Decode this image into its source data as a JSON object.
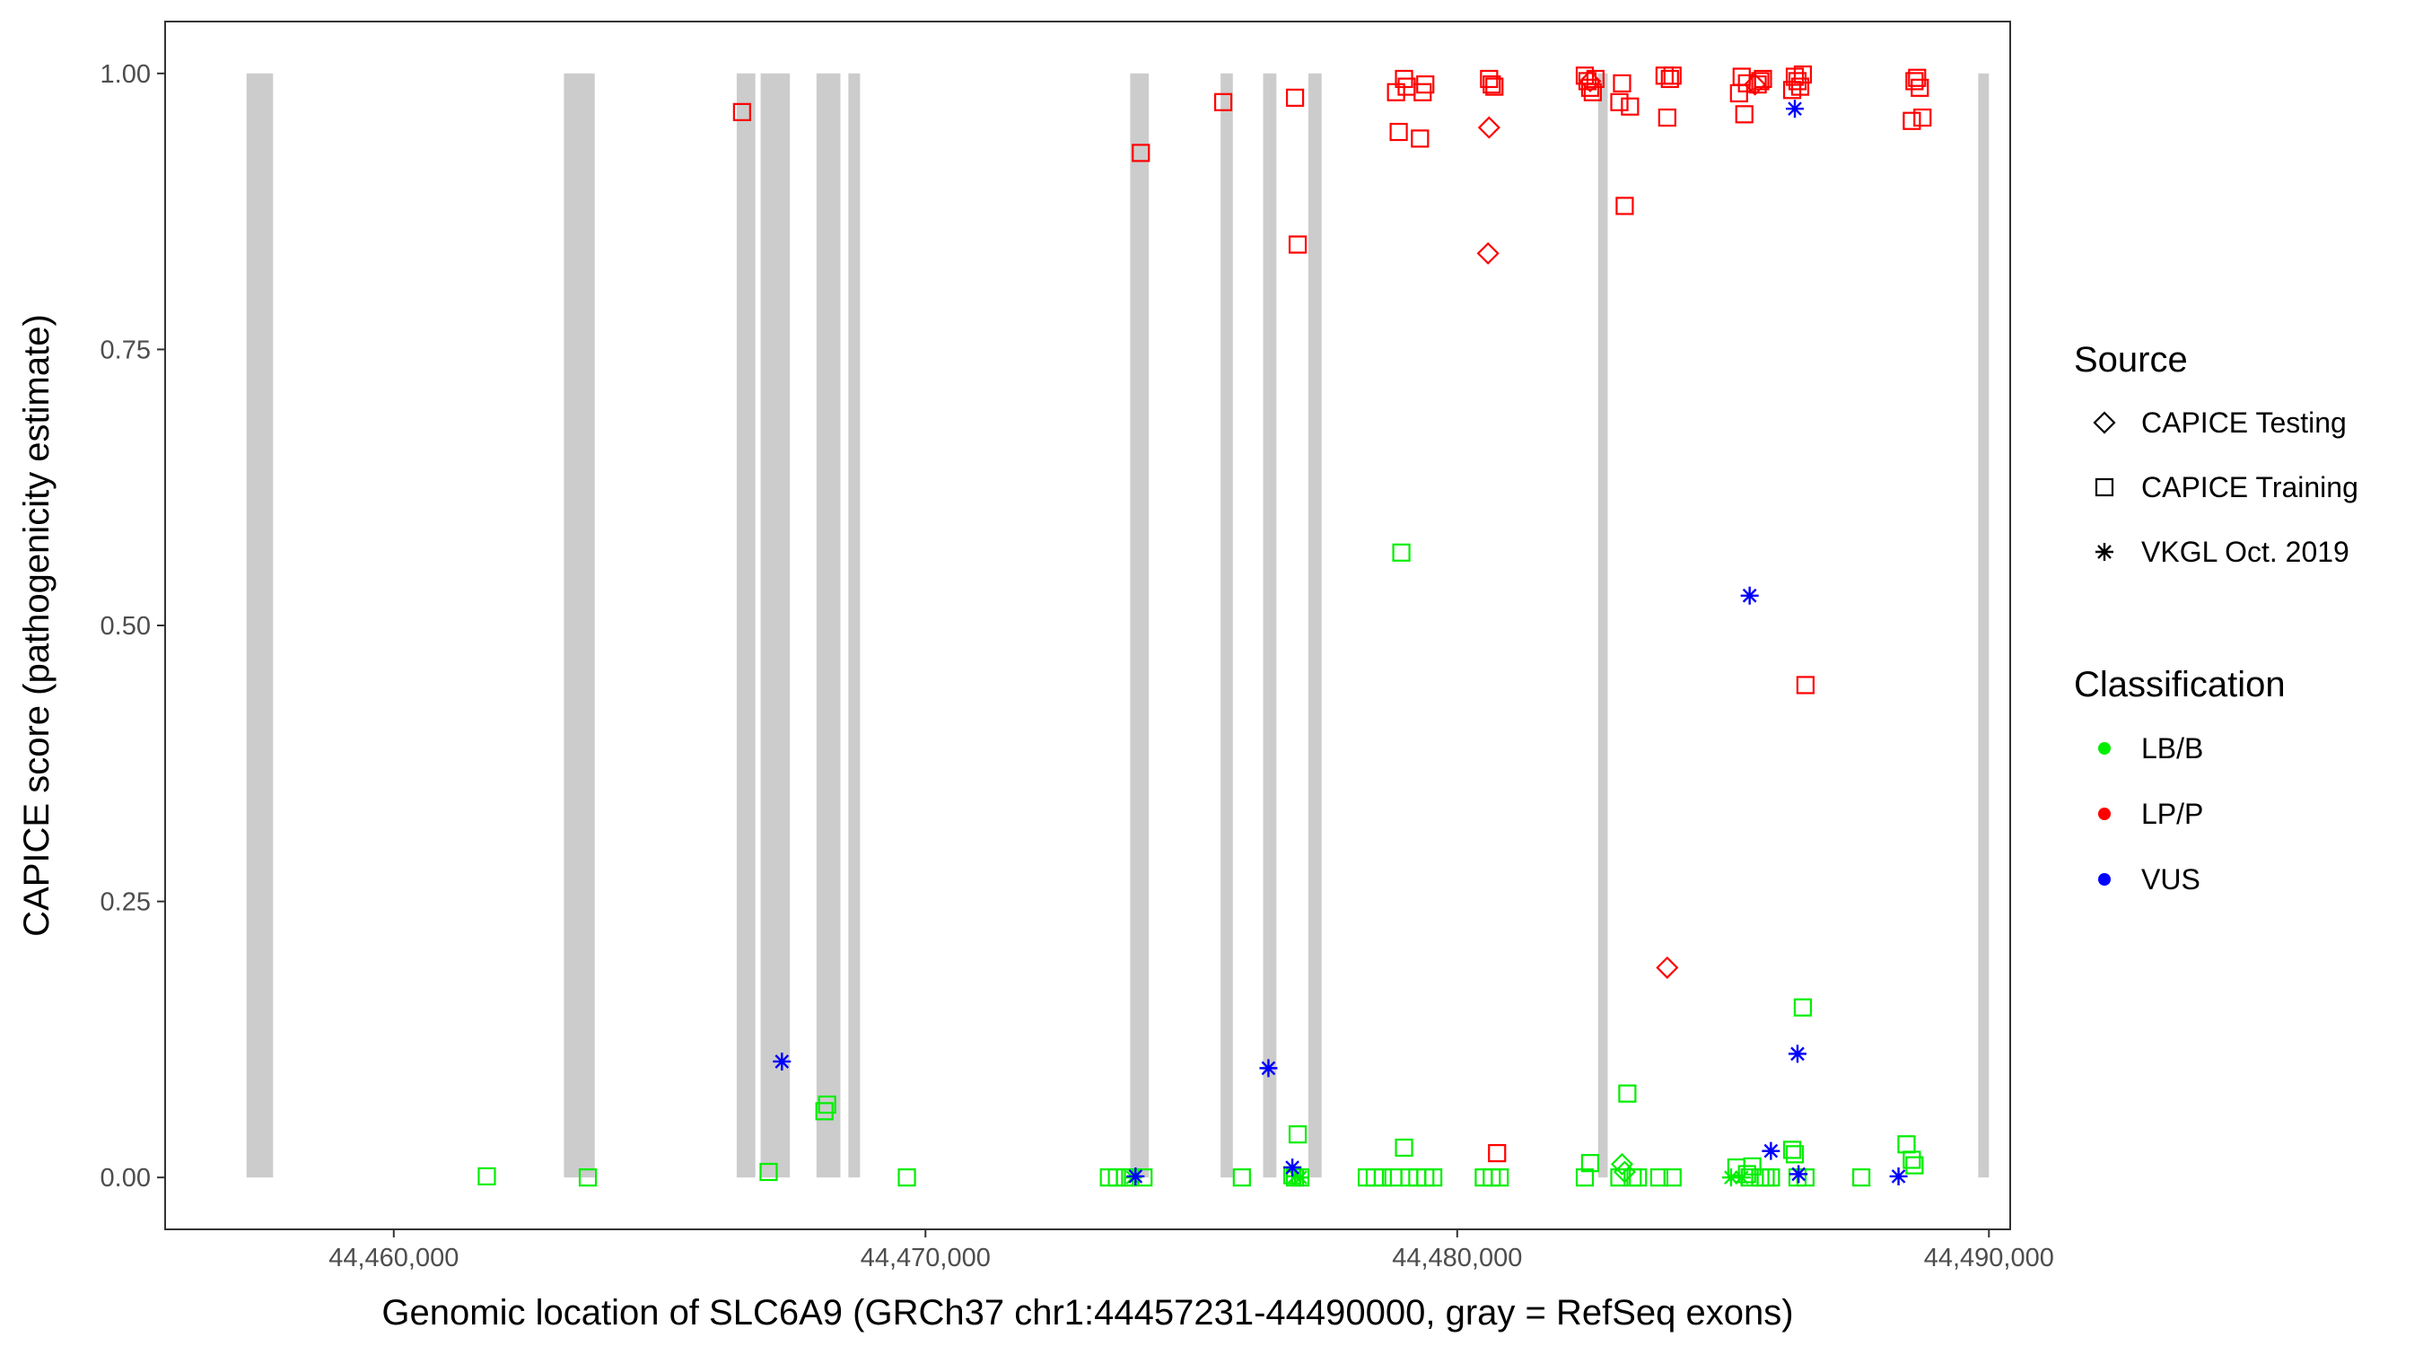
{
  "chart_data": {
    "type": "scatter",
    "xlabel": "Genomic location of SLC6A9 (GRCh37 chr1:44457231-44490000, gray = RefSeq exons)",
    "ylabel": "CAPICE score (pathogenicity estimate)",
    "xlim": [
      44455700,
      44490400
    ],
    "ylim": [
      -0.047,
      1.047
    ],
    "x_ticks": [
      44460000,
      44470000,
      44480000,
      44490000
    ],
    "x_tick_labels": [
      "44,460,000",
      "44,470,000",
      "44,480,000",
      "44,490,000"
    ],
    "y_ticks": [
      0,
      0.25,
      0.5,
      0.75,
      1.0
    ],
    "y_tick_labels": [
      "0.00",
      "0.25",
      "0.50",
      "0.75",
      "1.00"
    ],
    "grid": false,
    "exon_color": "#cccccc",
    "exons": [
      [
        44457231,
        44457730
      ],
      [
        44463200,
        44463780
      ],
      [
        44466450,
        44466800
      ],
      [
        44466900,
        44467450
      ],
      [
        44467950,
        44468400
      ],
      [
        44468550,
        44468770
      ],
      [
        44473850,
        44474200
      ],
      [
        44475550,
        44475780
      ],
      [
        44476350,
        44476600
      ],
      [
        44477200,
        44477450
      ],
      [
        44482650,
        44482830
      ],
      [
        44489800,
        44490000
      ]
    ],
    "legend": {
      "position": "right",
      "source_title": "Source",
      "source_entries": [
        {
          "label": "CAPICE Testing",
          "shape": "diamond"
        },
        {
          "label": "CAPICE Training",
          "shape": "square"
        },
        {
          "label": "VKGL Oct. 2019",
          "shape": "asterisk"
        }
      ],
      "class_title": "Classification",
      "class_entries": [
        {
          "label": "LB/B",
          "color": "#00ee00"
        },
        {
          "label": "LP/P",
          "color": "#ff0000"
        },
        {
          "label": "VUS",
          "color": "#0000ff"
        }
      ]
    },
    "series": [
      {
        "classification": "LP/P",
        "source": "CAPICE Training",
        "points": [
          [
            44466550,
            0.965
          ],
          [
            44474050,
            0.928
          ],
          [
            44475600,
            0.974
          ],
          [
            44476950,
            0.978
          ],
          [
            44477000,
            0.845
          ],
          [
            44478850,
            0.983
          ],
          [
            44478900,
            0.947
          ],
          [
            44479000,
            0.995
          ],
          [
            44479050,
            0.988
          ],
          [
            44479300,
            0.941
          ],
          [
            44479350,
            0.983
          ],
          [
            44479400,
            0.99
          ],
          [
            44480600,
            0.995
          ],
          [
            44480650,
            0.99
          ],
          [
            44480700,
            0.988
          ],
          [
            44480750,
            0.022
          ],
          [
            44482400,
            0.998
          ],
          [
            44482450,
            0.993
          ],
          [
            44482500,
            0.987
          ],
          [
            44482550,
            0.983
          ],
          [
            44482600,
            0.995
          ],
          [
            44483050,
            0.974
          ],
          [
            44483100,
            0.991
          ],
          [
            44483150,
            0.88
          ],
          [
            44483250,
            0.97
          ],
          [
            44483900,
            0.998
          ],
          [
            44483950,
            0.96
          ],
          [
            44484000,
            0.995
          ],
          [
            44484050,
            0.998
          ],
          [
            44485300,
            0.982
          ],
          [
            44485350,
            0.997
          ],
          [
            44485400,
            0.963
          ],
          [
            44485450,
            0.991
          ],
          [
            44485650,
            0.99
          ],
          [
            44485700,
            0.993
          ],
          [
            44485750,
            0.995
          ],
          [
            44486300,
            0.985
          ],
          [
            44486350,
            0.997
          ],
          [
            44486400,
            0.993
          ],
          [
            44486450,
            0.988
          ],
          [
            44486500,
            0.999
          ],
          [
            44486550,
            0.446
          ],
          [
            44488550,
            0.957
          ],
          [
            44488600,
            0.993
          ],
          [
            44488650,
            0.996
          ],
          [
            44488700,
            0.987
          ],
          [
            44488750,
            0.96
          ]
        ]
      },
      {
        "classification": "LP/P",
        "source": "CAPICE Testing",
        "points": [
          [
            44480600,
            0.951
          ],
          [
            44480580,
            0.837
          ],
          [
            44482500,
            0.993
          ],
          [
            44483950,
            0.19
          ],
          [
            44485600,
            0.99
          ]
        ]
      },
      {
        "classification": "LB/B",
        "source": "CAPICE Training",
        "points": [
          [
            44461750,
            0.001
          ],
          [
            44463650,
            0.0
          ],
          [
            44467050,
            0.005
          ],
          [
            44468100,
            0.06
          ],
          [
            44468150,
            0.066
          ],
          [
            44469650,
            0.0
          ],
          [
            44473450,
            0.0
          ],
          [
            44473600,
            0.0
          ],
          [
            44473750,
            0.0
          ],
          [
            44473850,
            0.0
          ],
          [
            44474100,
            0.0
          ],
          [
            44475950,
            0.0
          ],
          [
            44476900,
            0.002
          ],
          [
            44476950,
            0.0
          ],
          [
            44477000,
            0.039
          ],
          [
            44477050,
            0.0
          ],
          [
            44478300,
            0.0
          ],
          [
            44478450,
            0.0
          ],
          [
            44478600,
            0.0
          ],
          [
            44478800,
            0.0
          ],
          [
            44478950,
            0.566
          ],
          [
            44479000,
            0.027
          ],
          [
            44479100,
            0.0
          ],
          [
            44479250,
            0.0
          ],
          [
            44479400,
            0.0
          ],
          [
            44479550,
            0.0
          ],
          [
            44480500,
            0.0
          ],
          [
            44480650,
            0.0
          ],
          [
            44480800,
            0.0
          ],
          [
            44482400,
            0.0
          ],
          [
            44482500,
            0.013
          ],
          [
            44483050,
            0.0
          ],
          [
            44483200,
            0.076
          ],
          [
            44483300,
            0.0
          ],
          [
            44483400,
            0.0
          ],
          [
            44483800,
            0.0
          ],
          [
            44484050,
            0.0
          ],
          [
            44485250,
            0.009
          ],
          [
            44485450,
            0.003
          ],
          [
            44485500,
            0.0
          ],
          [
            44485550,
            0.01
          ],
          [
            44485700,
            0.0
          ],
          [
            44485800,
            0.0
          ],
          [
            44485900,
            0.0
          ],
          [
            44486300,
            0.025
          ],
          [
            44486350,
            0.021
          ],
          [
            44486400,
            0.0
          ],
          [
            44486500,
            0.154
          ],
          [
            44486550,
            0.0
          ],
          [
            44487600,
            0.0
          ],
          [
            44488450,
            0.03
          ],
          [
            44488550,
            0.016
          ],
          [
            44488600,
            0.011
          ]
        ]
      },
      {
        "classification": "LB/B",
        "source": "CAPICE Testing",
        "points": [
          [
            44483100,
            0.012
          ],
          [
            44483150,
            0.005
          ]
        ]
      },
      {
        "classification": "LB/B",
        "source": "VKGL Oct. 2019",
        "points": [
          [
            44473900,
            0.0
          ],
          [
            44476950,
            0.001
          ],
          [
            44477050,
            0.0
          ],
          [
            44485150,
            0.0
          ],
          [
            44485350,
            0.0
          ]
        ]
      },
      {
        "classification": "VUS",
        "source": "VKGL Oct. 2019",
        "points": [
          [
            44467300,
            0.105
          ],
          [
            44473950,
            0.001
          ],
          [
            44476450,
            0.099
          ],
          [
            44476900,
            0.009
          ],
          [
            44485500,
            0.527
          ],
          [
            44485900,
            0.024
          ],
          [
            44486350,
            0.968
          ],
          [
            44486400,
            0.112
          ],
          [
            44486420,
            0.003
          ],
          [
            44488300,
            0.001
          ]
        ]
      }
    ]
  }
}
